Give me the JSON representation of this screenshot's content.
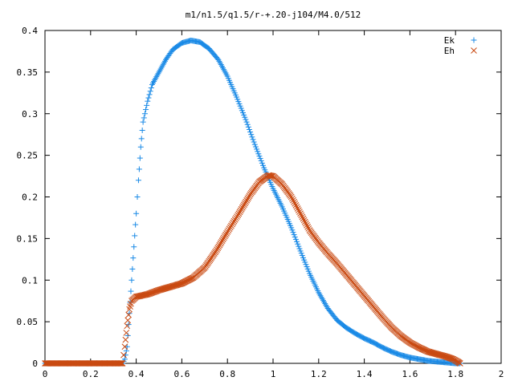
{
  "chart_data": {
    "type": "scatter",
    "title": "m1/n1.5/q1.5/r-+.20-j104/M4.0/512",
    "xlabel": "",
    "ylabel": "",
    "xlim": [
      0,
      2
    ],
    "ylim": [
      0,
      0.4
    ],
    "x_ticks": [
      "0",
      "0.2",
      "0.4",
      "0.6",
      "0.8",
      "1",
      "1.2",
      "1.4",
      "1.6",
      "1.8",
      "2"
    ],
    "y_ticks": [
      "0",
      "0.05",
      "0.1",
      "0.15",
      "0.2",
      "0.25",
      "0.3",
      "0.35",
      "0.4"
    ],
    "grid": false,
    "legend": "top-right",
    "series": [
      {
        "name": "Ek",
        "marker": "+",
        "color": "#1a8ae6",
        "points": [
          [
            0.0,
            0
          ],
          [
            0.05,
            0
          ],
          [
            0.1,
            0
          ],
          [
            0.15,
            0
          ],
          [
            0.2,
            0
          ],
          [
            0.25,
            0
          ],
          [
            0.3,
            0
          ],
          [
            0.34,
            0
          ],
          [
            0.35,
            0.005
          ],
          [
            0.36,
            0.02
          ],
          [
            0.37,
            0.06
          ],
          [
            0.38,
            0.1
          ],
          [
            0.39,
            0.14
          ],
          [
            0.4,
            0.18
          ],
          [
            0.41,
            0.22
          ],
          [
            0.42,
            0.26
          ],
          [
            0.43,
            0.29
          ],
          [
            0.45,
            0.315
          ],
          [
            0.47,
            0.335
          ],
          [
            0.5,
            0.35
          ],
          [
            0.53,
            0.365
          ],
          [
            0.56,
            0.377
          ],
          [
            0.6,
            0.385
          ],
          [
            0.64,
            0.388
          ],
          [
            0.68,
            0.386
          ],
          [
            0.72,
            0.378
          ],
          [
            0.76,
            0.365
          ],
          [
            0.8,
            0.345
          ],
          [
            0.84,
            0.32
          ],
          [
            0.88,
            0.293
          ],
          [
            0.92,
            0.263
          ],
          [
            0.96,
            0.235
          ],
          [
            1.0,
            0.21
          ],
          [
            1.04,
            0.188
          ],
          [
            1.08,
            0.163
          ],
          [
            1.12,
            0.135
          ],
          [
            1.16,
            0.108
          ],
          [
            1.2,
            0.085
          ],
          [
            1.24,
            0.066
          ],
          [
            1.28,
            0.052
          ],
          [
            1.32,
            0.043
          ],
          [
            1.36,
            0.036
          ],
          [
            1.4,
            0.03
          ],
          [
            1.44,
            0.025
          ],
          [
            1.48,
            0.019
          ],
          [
            1.52,
            0.014
          ],
          [
            1.56,
            0.01
          ],
          [
            1.6,
            0.007
          ],
          [
            1.64,
            0.005
          ],
          [
            1.68,
            0.003
          ],
          [
            1.72,
            0.002
          ],
          [
            1.76,
            0.001
          ],
          [
            1.8,
            0
          ],
          [
            1.82,
            0
          ]
        ]
      },
      {
        "name": "Eh",
        "marker": "x",
        "color": "#c94a12",
        "points": [
          [
            0.0,
            0
          ],
          [
            0.05,
            0
          ],
          [
            0.1,
            0
          ],
          [
            0.15,
            0
          ],
          [
            0.2,
            0
          ],
          [
            0.25,
            0
          ],
          [
            0.3,
            0
          ],
          [
            0.34,
            0
          ],
          [
            0.35,
            0.02
          ],
          [
            0.36,
            0.045
          ],
          [
            0.37,
            0.065
          ],
          [
            0.38,
            0.075
          ],
          [
            0.4,
            0.08
          ],
          [
            0.45,
            0.083
          ],
          [
            0.5,
            0.088
          ],
          [
            0.55,
            0.092
          ],
          [
            0.6,
            0.096
          ],
          [
            0.65,
            0.103
          ],
          [
            0.7,
            0.115
          ],
          [
            0.75,
            0.135
          ],
          [
            0.8,
            0.158
          ],
          [
            0.85,
            0.18
          ],
          [
            0.9,
            0.203
          ],
          [
            0.94,
            0.218
          ],
          [
            0.98,
            0.226
          ],
          [
            1.0,
            0.225
          ],
          [
            1.04,
            0.215
          ],
          [
            1.08,
            0.2
          ],
          [
            1.12,
            0.18
          ],
          [
            1.16,
            0.16
          ],
          [
            1.2,
            0.145
          ],
          [
            1.24,
            0.132
          ],
          [
            1.28,
            0.12
          ],
          [
            1.32,
            0.107
          ],
          [
            1.36,
            0.094
          ],
          [
            1.4,
            0.081
          ],
          [
            1.44,
            0.068
          ],
          [
            1.48,
            0.055
          ],
          [
            1.52,
            0.043
          ],
          [
            1.56,
            0.033
          ],
          [
            1.6,
            0.025
          ],
          [
            1.64,
            0.019
          ],
          [
            1.68,
            0.014
          ],
          [
            1.72,
            0.011
          ],
          [
            1.76,
            0.008
          ],
          [
            1.79,
            0.005
          ],
          [
            1.81,
            0.002
          ],
          [
            1.82,
            0
          ]
        ]
      }
    ]
  }
}
